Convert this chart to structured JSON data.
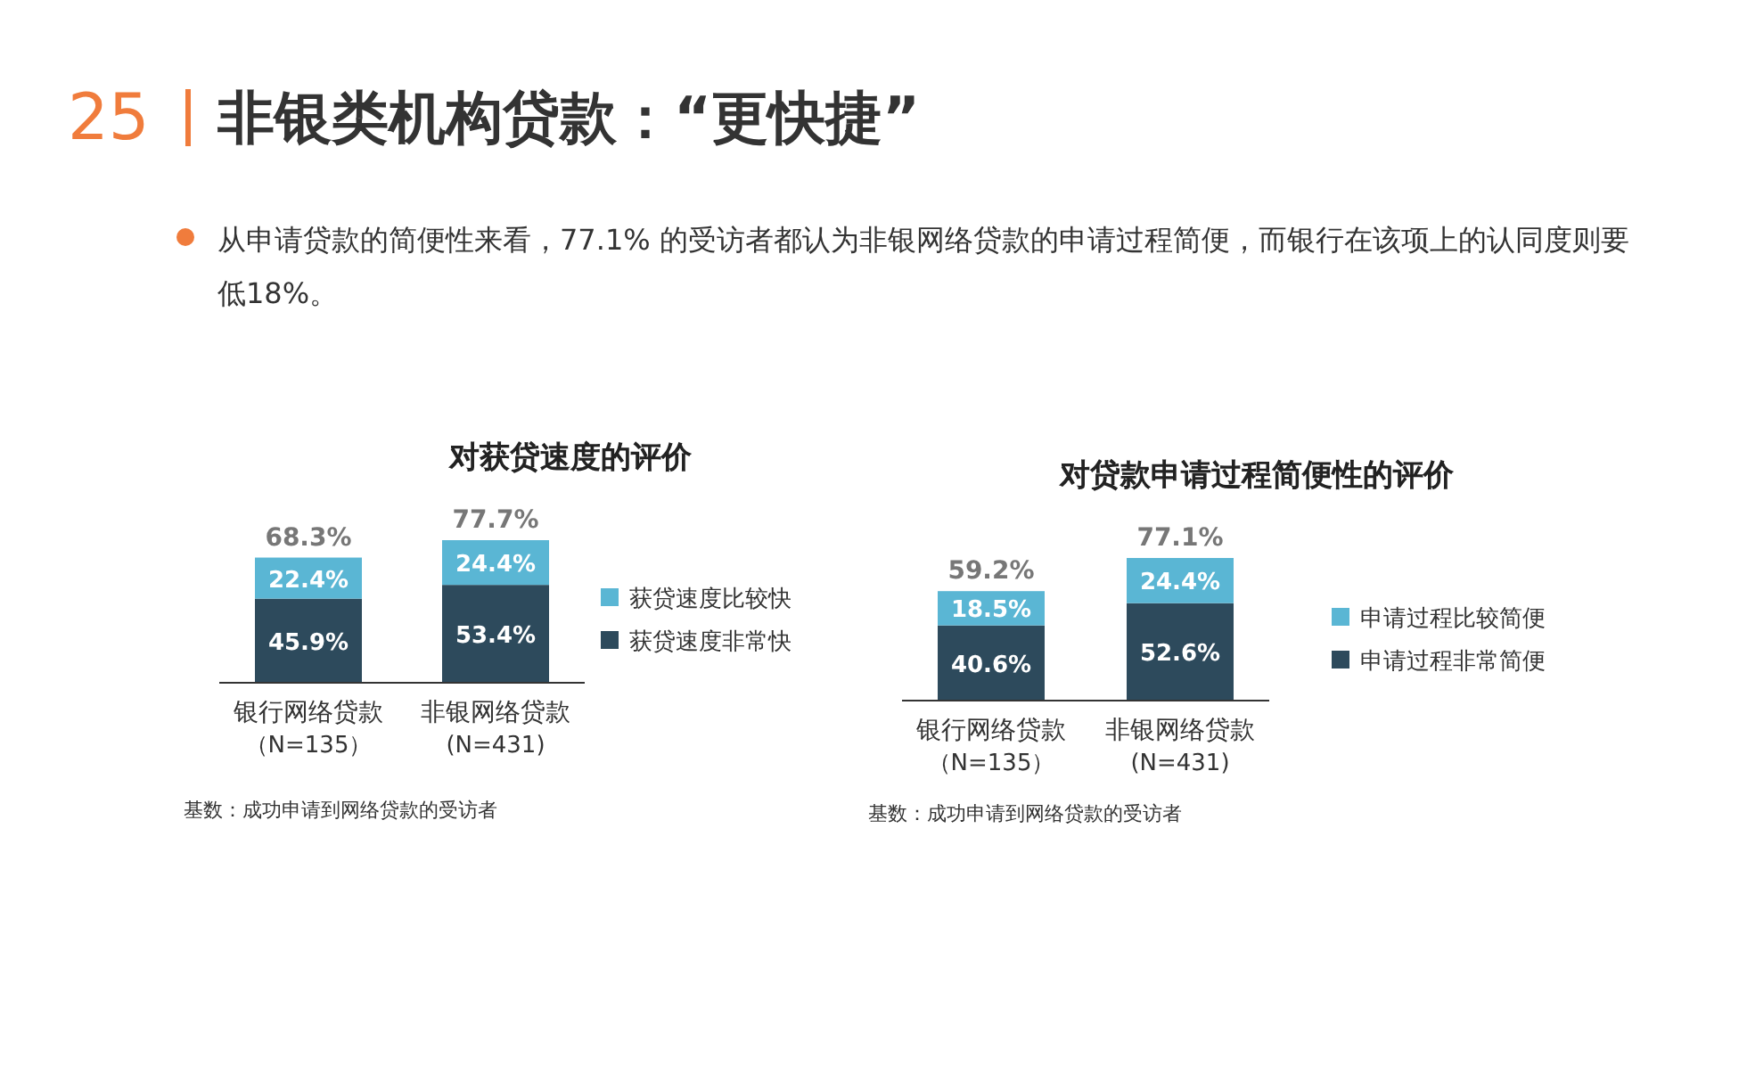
{
  "chart_data": [
    {
      "type": "other",
      "title": "非银类机构贷款：“更快捷”",
      "annotations": [
        "25",
        "从申请贷款的简便性来看，77.1% 的受访者都认为非银网络贷款的申请过程简便，而银行在该项上的认同度则要低18%。"
      ]
    },
    {
      "type": "bar",
      "stacked": true,
      "title": "对获贷速度的评价",
      "categories": [
        "银行网络贷款（N=135）",
        "非银网络贷款(N=431)"
      ],
      "series": [
        {
          "name": "获贷速度非常快",
          "color": "#2d4a5c",
          "values": [
            45.9,
            53.4
          ],
          "value_labels": [
            "45.9%",
            "53.4%"
          ]
        },
        {
          "name": "获贷速度比较快",
          "color": "#5ab6d4",
          "values": [
            22.4,
            24.4
          ],
          "value_labels": [
            "22.4%",
            "24.4%"
          ]
        }
      ],
      "totals": [
        "68.3%",
        "77.7%"
      ],
      "legend": "right",
      "annotations": [
        "基数：成功申请到网络贷款的受访者"
      ]
    },
    {
      "type": "bar",
      "stacked": true,
      "title": "对贷款申请过程简便性的评价",
      "categories": [
        "银行网络贷款（N=135）",
        "非银网络贷款(N=431)"
      ],
      "series": [
        {
          "name": "申请过程非常简便",
          "color": "#2d4a5c",
          "values": [
            40.6,
            52.6
          ],
          "value_labels": [
            "40.6%",
            "52.6%"
          ]
        },
        {
          "name": "申请过程比较简便",
          "color": "#5ab6d4",
          "values": [
            18.5,
            24.4
          ],
          "value_labels": [
            "18.5%",
            "24.4%"
          ]
        }
      ],
      "totals": [
        "59.2%",
        "77.1%"
      ],
      "legend": "right",
      "annotations": [
        "基数：成功申请到网络贷款的受访者"
      ]
    }
  ]
}
